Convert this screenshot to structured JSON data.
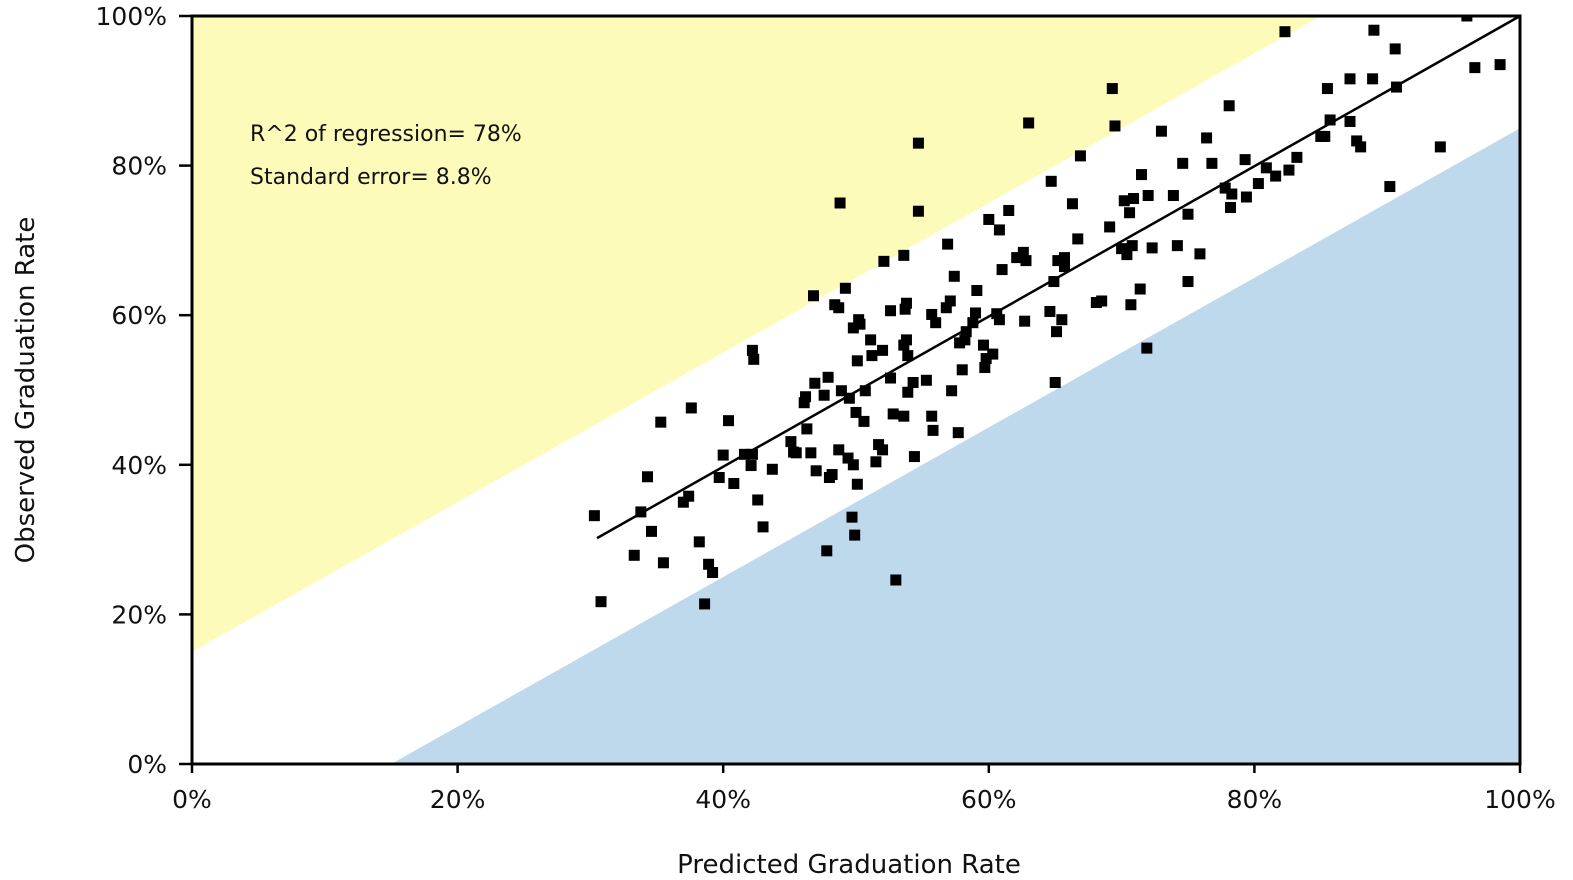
{
  "chart_data": {
    "type": "scatter",
    "xlabel": "Predicted Graduation Rate",
    "ylabel": "Observed Graduation Rate",
    "xlim": [
      0,
      100
    ],
    "ylim": [
      0,
      100
    ],
    "x_ticks": [
      "0%",
      "20%",
      "40%",
      "60%",
      "80%",
      "100%"
    ],
    "y_ticks": [
      "0%",
      "20%",
      "40%",
      "60%",
      "80%",
      "100%"
    ],
    "annotations": [
      "R^2 of regression= 78%",
      "Standard error= 8.8%"
    ],
    "regression_line": {
      "x": [
        30.5,
        100
      ],
      "y": [
        30.2,
        100
      ]
    },
    "bands": {
      "upper": {
        "color": "#fdfbb9",
        "offset": 15
      },
      "lower": {
        "color": "#bed8ec",
        "offset": -15
      }
    },
    "marker_color": "#000000",
    "points": [
      [
        30.3,
        33.2
      ],
      [
        30.8,
        21.7
      ],
      [
        33.3,
        27.9
      ],
      [
        33.8,
        33.7
      ],
      [
        34.3,
        38.4
      ],
      [
        34.6,
        31.1
      ],
      [
        35.3,
        45.7
      ],
      [
        35.5,
        26.9
      ],
      [
        37.0,
        35.0
      ],
      [
        37.4,
        35.8
      ],
      [
        37.6,
        47.6
      ],
      [
        38.2,
        29.7
      ],
      [
        38.6,
        21.4
      ],
      [
        38.9,
        26.7
      ],
      [
        39.2,
        25.6
      ],
      [
        39.7,
        38.3
      ],
      [
        40.0,
        41.3
      ],
      [
        40.4,
        45.9
      ],
      [
        40.8,
        37.5
      ],
      [
        41.6,
        41.4
      ],
      [
        42.1,
        39.9
      ],
      [
        42.2,
        55.3
      ],
      [
        42.3,
        54.1
      ],
      [
        42.2,
        41.4
      ],
      [
        42.6,
        35.3
      ],
      [
        43.0,
        31.7
      ],
      [
        43.7,
        39.4
      ],
      [
        45.1,
        43.1
      ],
      [
        45.3,
        41.7
      ],
      [
        45.5,
        41.6
      ],
      [
        46.1,
        48.3
      ],
      [
        46.2,
        49.1
      ],
      [
        46.3,
        44.8
      ],
      [
        46.6,
        41.6
      ],
      [
        46.8,
        62.6
      ],
      [
        46.9,
        50.9
      ],
      [
        47.0,
        39.2
      ],
      [
        47.6,
        49.3
      ],
      [
        47.8,
        28.5
      ],
      [
        47.9,
        51.7
      ],
      [
        48.0,
        38.3
      ],
      [
        48.2,
        38.7
      ],
      [
        48.4,
        61.4
      ],
      [
        48.7,
        61.0
      ],
      [
        48.7,
        42.0
      ],
      [
        48.8,
        75.0
      ],
      [
        48.9,
        49.9
      ],
      [
        49.2,
        63.6
      ],
      [
        49.4,
        40.9
      ],
      [
        49.5,
        48.9
      ],
      [
        49.7,
        33.0
      ],
      [
        49.8,
        58.3
      ],
      [
        49.8,
        40.0
      ],
      [
        49.9,
        30.6
      ],
      [
        50.0,
        47.0
      ],
      [
        50.1,
        53.9
      ],
      [
        50.1,
        37.4
      ],
      [
        50.2,
        59.4
      ],
      [
        50.3,
        58.8
      ],
      [
        50.6,
        45.8
      ],
      [
        50.7,
        49.9
      ],
      [
        51.1,
        56.7
      ],
      [
        51.2,
        54.6
      ],
      [
        51.5,
        40.4
      ],
      [
        51.7,
        42.7
      ],
      [
        52.0,
        42.0
      ],
      [
        52.0,
        55.3
      ],
      [
        52.1,
        67.2
      ],
      [
        52.6,
        60.6
      ],
      [
        52.6,
        51.6
      ],
      [
        52.8,
        46.8
      ],
      [
        53.0,
        24.6
      ],
      [
        53.6,
        68.0
      ],
      [
        53.6,
        46.5
      ],
      [
        53.6,
        56.0
      ],
      [
        53.7,
        60.8
      ],
      [
        53.8,
        61.6
      ],
      [
        53.8,
        56.7
      ],
      [
        53.9,
        54.6
      ],
      [
        53.9,
        49.7
      ],
      [
        54.3,
        51.0
      ],
      [
        54.4,
        41.1
      ],
      [
        54.7,
        83.0
      ],
      [
        54.7,
        73.9
      ],
      [
        55.3,
        51.3
      ],
      [
        55.7,
        60.1
      ],
      [
        55.7,
        46.5
      ],
      [
        55.8,
        44.6
      ],
      [
        56.0,
        59.0
      ],
      [
        56.8,
        61.0
      ],
      [
        56.9,
        69.5
      ],
      [
        57.1,
        61.9
      ],
      [
        57.2,
        49.9
      ],
      [
        57.4,
        65.2
      ],
      [
        57.7,
        44.3
      ],
      [
        57.8,
        56.3
      ],
      [
        58.0,
        52.7
      ],
      [
        58.2,
        56.7
      ],
      [
        58.3,
        57.8
      ],
      [
        58.8,
        59.0
      ],
      [
        59.0,
        60.3
      ],
      [
        59.1,
        63.3
      ],
      [
        59.6,
        56.0
      ],
      [
        59.7,
        53.0
      ],
      [
        59.8,
        54.2
      ],
      [
        60.0,
        72.8
      ],
      [
        60.3,
        54.8
      ],
      [
        60.6,
        60.2
      ],
      [
        60.8,
        59.4
      ],
      [
        60.8,
        71.4
      ],
      [
        61.0,
        66.1
      ],
      [
        61.5,
        74.0
      ],
      [
        62.1,
        67.7
      ],
      [
        62.6,
        68.4
      ],
      [
        62.7,
        59.2
      ],
      [
        62.8,
        67.3
      ],
      [
        63.0,
        85.7
      ],
      [
        64.6,
        60.5
      ],
      [
        64.7,
        77.9
      ],
      [
        64.9,
        64.5
      ],
      [
        65.0,
        51.0
      ],
      [
        65.1,
        57.8
      ],
      [
        65.2,
        67.3
      ],
      [
        65.5,
        59.4
      ],
      [
        65.7,
        67.7
      ],
      [
        65.7,
        66.5
      ],
      [
        66.3,
        74.9
      ],
      [
        66.7,
        70.2
      ],
      [
        66.9,
        81.3
      ],
      [
        68.1,
        61.7
      ],
      [
        68.5,
        61.9
      ],
      [
        69.1,
        71.8
      ],
      [
        69.3,
        90.3
      ],
      [
        69.5,
        85.3
      ],
      [
        70.0,
        68.9
      ],
      [
        70.2,
        75.3
      ],
      [
        70.4,
        68.1
      ],
      [
        70.6,
        73.7
      ],
      [
        70.7,
        61.4
      ],
      [
        70.8,
        69.3
      ],
      [
        70.9,
        75.6
      ],
      [
        71.4,
        63.5
      ],
      [
        71.5,
        78.8
      ],
      [
        71.9,
        55.6
      ],
      [
        72.0,
        76.0
      ],
      [
        72.3,
        69.0
      ],
      [
        73.0,
        84.6
      ],
      [
        73.9,
        76.0
      ],
      [
        74.2,
        69.3
      ],
      [
        74.6,
        80.3
      ],
      [
        75.0,
        64.5
      ],
      [
        75.0,
        73.5
      ],
      [
        75.9,
        68.2
      ],
      [
        76.4,
        83.7
      ],
      [
        76.8,
        80.3
      ],
      [
        77.8,
        77.0
      ],
      [
        78.1,
        88.0
      ],
      [
        78.2,
        74.4
      ],
      [
        78.3,
        76.2
      ],
      [
        79.3,
        80.8
      ],
      [
        79.4,
        75.8
      ],
      [
        80.3,
        77.6
      ],
      [
        80.9,
        79.7
      ],
      [
        81.6,
        78.6
      ],
      [
        82.3,
        97.9
      ],
      [
        82.6,
        79.4
      ],
      [
        83.2,
        81.1
      ],
      [
        85.0,
        83.9
      ],
      [
        85.3,
        83.9
      ],
      [
        85.5,
        90.3
      ],
      [
        85.7,
        86.1
      ],
      [
        87.2,
        91.6
      ],
      [
        87.2,
        85.9
      ],
      [
        87.7,
        83.3
      ],
      [
        88.0,
        82.5
      ],
      [
        88.9,
        91.6
      ],
      [
        89.0,
        98.1
      ],
      [
        90.2,
        77.2
      ],
      [
        90.6,
        95.6
      ],
      [
        90.7,
        90.5
      ],
      [
        94.0,
        82.5
      ],
      [
        96.0,
        100.0
      ],
      [
        96.6,
        93.1
      ],
      [
        98.5,
        93.5
      ]
    ]
  }
}
